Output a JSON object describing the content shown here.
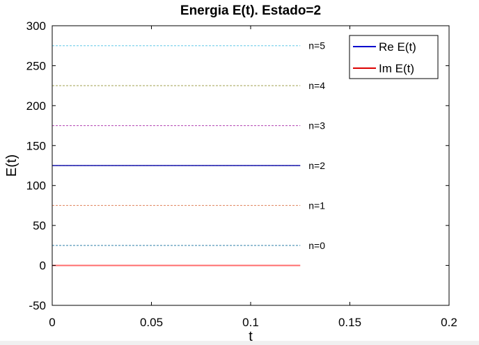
{
  "chart_data": {
    "type": "line",
    "title": "Energia E(t). Estado=2",
    "xlabel": "t",
    "ylabel": "E(t)",
    "xlim": [
      0,
      0.2
    ],
    "ylim": [
      -50,
      300
    ],
    "xticks": [
      0,
      0.05,
      0.1,
      0.15,
      0.2
    ],
    "xtick_labels": [
      "0",
      "0.05",
      "0.1",
      "0.15",
      "0.2"
    ],
    "yticks": [
      -50,
      0,
      50,
      100,
      150,
      200,
      250,
      300
    ],
    "ytick_labels": [
      "-50",
      "0",
      "50",
      "100",
      "150",
      "200",
      "250",
      "300"
    ],
    "grid": false,
    "legend": {
      "position": "top-right",
      "entries": [
        "Re E(t)",
        "Im E(t)"
      ]
    },
    "series": [
      {
        "name": "Re E(t)",
        "color": "#3333bb",
        "x": [
          0,
          0.125
        ],
        "y": [
          125,
          125
        ]
      },
      {
        "name": "Im E(t)",
        "color": "#ff5555",
        "x": [
          0,
          0.125
        ],
        "y": [
          0,
          0
        ]
      }
    ],
    "legend_colors": [
      "#0000cc",
      "#dd0000"
    ],
    "reference_lines": [
      {
        "label": "n=0",
        "y": 25,
        "x_end": 0.125,
        "color": "#2f7fa8"
      },
      {
        "label": "n=1",
        "y": 75,
        "x_end": 0.125,
        "color": "#e0805a"
      },
      {
        "label": "n=2",
        "y": 125,
        "x_end": 0.125,
        "color": "#c0b060"
      },
      {
        "label": "n=3",
        "y": 175,
        "x_end": 0.125,
        "color": "#b040b0"
      },
      {
        "label": "n=4",
        "y": 225,
        "x_end": 0.125,
        "color": "#a0a050"
      },
      {
        "label": "n=5",
        "y": 275,
        "x_end": 0.125,
        "color": "#60c8e8"
      }
    ]
  }
}
